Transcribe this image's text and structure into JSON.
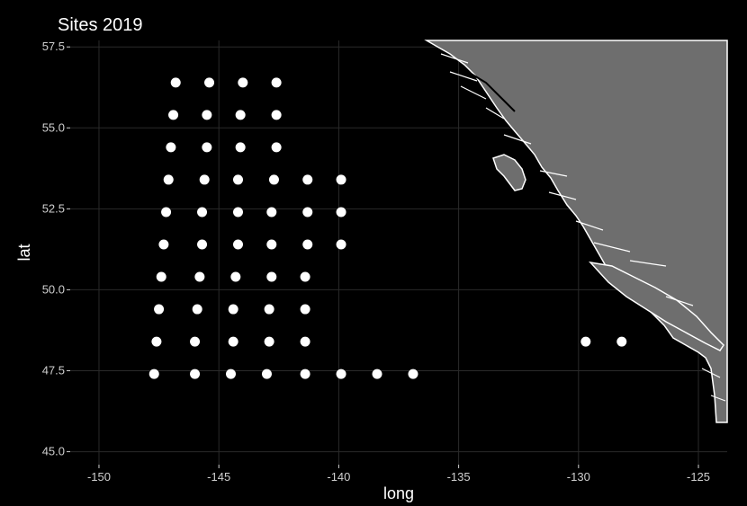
{
  "chart_data": {
    "type": "scatter",
    "title": "Sites 2019",
    "xlabel": "long",
    "ylabel": "lat",
    "xlim": [
      -151.2,
      -123.8
    ],
    "ylim": [
      44.6,
      57.7
    ],
    "x_ticks": [
      -150,
      -145,
      -140,
      -135,
      -130,
      -125
    ],
    "x_tick_labels": [
      "-150",
      "-145",
      "-140",
      "-135",
      "-130",
      "-125"
    ],
    "y_ticks": [
      45.0,
      47.5,
      50.0,
      52.5,
      55.0,
      57.5
    ],
    "y_tick_labels": [
      "45.0",
      "47.5",
      "50.0",
      "52.5",
      "55.0",
      "57.5"
    ],
    "grid": true,
    "background": "#000000",
    "land_color": "#6e6e6e",
    "coast_color": "#ffffff",
    "point_color": "#ffffff",
    "points": [
      {
        "x": -146.8,
        "y": 56.4
      },
      {
        "x": -145.4,
        "y": 56.4
      },
      {
        "x": -144.0,
        "y": 56.4
      },
      {
        "x": -142.6,
        "y": 56.4
      },
      {
        "x": -146.9,
        "y": 55.4
      },
      {
        "x": -145.5,
        "y": 55.4
      },
      {
        "x": -144.1,
        "y": 55.4
      },
      {
        "x": -142.6,
        "y": 55.4
      },
      {
        "x": -147.0,
        "y": 54.4
      },
      {
        "x": -145.5,
        "y": 54.4
      },
      {
        "x": -144.1,
        "y": 54.4
      },
      {
        "x": -142.6,
        "y": 54.4
      },
      {
        "x": -147.1,
        "y": 53.4
      },
      {
        "x": -145.6,
        "y": 53.4
      },
      {
        "x": -144.2,
        "y": 53.4
      },
      {
        "x": -142.7,
        "y": 53.4
      },
      {
        "x": -141.3,
        "y": 53.4
      },
      {
        "x": -139.9,
        "y": 53.4
      },
      {
        "x": -147.2,
        "y": 52.4
      },
      {
        "x": -145.7,
        "y": 52.4
      },
      {
        "x": -144.2,
        "y": 52.4
      },
      {
        "x": -142.8,
        "y": 52.4
      },
      {
        "x": -141.3,
        "y": 52.4
      },
      {
        "x": -139.9,
        "y": 52.4
      },
      {
        "x": -147.3,
        "y": 51.4
      },
      {
        "x": -145.7,
        "y": 51.4
      },
      {
        "x": -144.2,
        "y": 51.4
      },
      {
        "x": -142.8,
        "y": 51.4
      },
      {
        "x": -141.3,
        "y": 51.4
      },
      {
        "x": -139.9,
        "y": 51.4
      },
      {
        "x": -147.4,
        "y": 50.4
      },
      {
        "x": -145.8,
        "y": 50.4
      },
      {
        "x": -144.3,
        "y": 50.4
      },
      {
        "x": -142.8,
        "y": 50.4
      },
      {
        "x": -141.4,
        "y": 50.4
      },
      {
        "x": -147.5,
        "y": 49.4
      },
      {
        "x": -145.9,
        "y": 49.4
      },
      {
        "x": -144.4,
        "y": 49.4
      },
      {
        "x": -142.9,
        "y": 49.4
      },
      {
        "x": -141.4,
        "y": 49.4
      },
      {
        "x": -147.6,
        "y": 48.4
      },
      {
        "x": -146.0,
        "y": 48.4
      },
      {
        "x": -144.4,
        "y": 48.4
      },
      {
        "x": -142.9,
        "y": 48.4
      },
      {
        "x": -141.4,
        "y": 48.4
      },
      {
        "x": -129.7,
        "y": 48.4
      },
      {
        "x": -128.2,
        "y": 48.4
      },
      {
        "x": -147.7,
        "y": 47.4
      },
      {
        "x": -146.0,
        "y": 47.4
      },
      {
        "x": -144.5,
        "y": 47.4
      },
      {
        "x": -143.0,
        "y": 47.4
      },
      {
        "x": -141.4,
        "y": 47.4
      },
      {
        "x": -139.9,
        "y": 47.4
      },
      {
        "x": -138.4,
        "y": 47.4
      },
      {
        "x": -136.9,
        "y": 47.4
      }
    ]
  }
}
